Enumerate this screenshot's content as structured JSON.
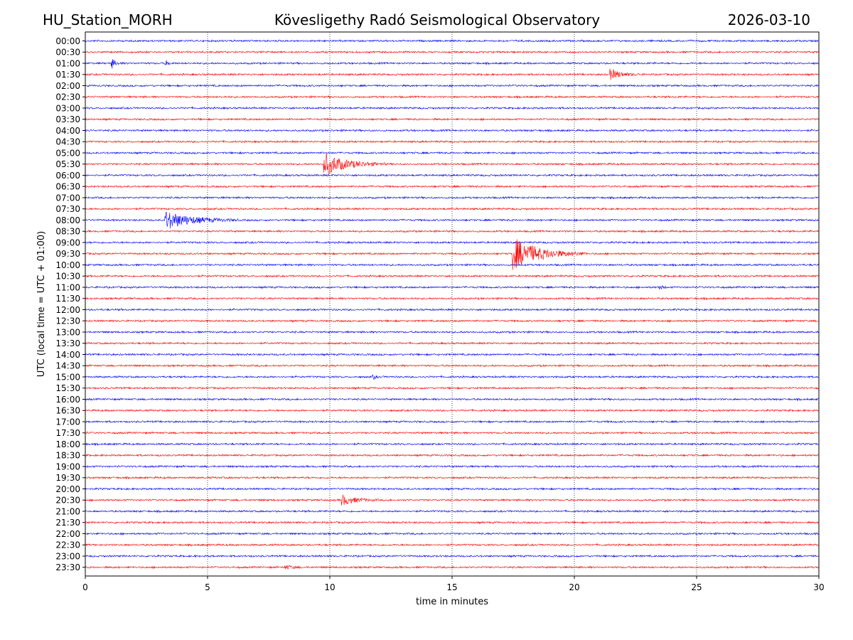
{
  "header": {
    "station": "HU_Station_MORH",
    "title": "Kövesligethy Radó Seismological Observatory",
    "date": "2026-03-10"
  },
  "chart_data": {
    "type": "line",
    "title": "Kövesligethy Radó Seismological Observatory",
    "xlabel": "time in minutes",
    "ylabel": "UTC (local time = UTC + 01:00)",
    "xlim": [
      0,
      30
    ],
    "x_ticks": [
      "0",
      "5",
      "10",
      "15",
      "20",
      "25",
      "30"
    ],
    "grid": "vertical dotted lines at 5-minute intervals",
    "rows": [
      "00:00",
      "00:30",
      "01:00",
      "01:30",
      "02:00",
      "02:30",
      "03:00",
      "03:30",
      "04:00",
      "04:30",
      "05:00",
      "05:30",
      "06:00",
      "06:30",
      "07:00",
      "07:30",
      "08:00",
      "08:30",
      "09:00",
      "09:30",
      "10:00",
      "10:30",
      "11:00",
      "11:30",
      "12:00",
      "12:30",
      "13:00",
      "13:30",
      "14:00",
      "14:30",
      "15:00",
      "15:30",
      "16:00",
      "16:30",
      "17:00",
      "17:30",
      "18:00",
      "18:30",
      "19:00",
      "19:30",
      "20:00",
      "20:30",
      "21:00",
      "21:30",
      "22:00",
      "22:30",
      "23:00",
      "23:30"
    ],
    "colors": {
      "even_rows": "#0000ff",
      "odd_rows": "#ff0000"
    },
    "events": [
      {
        "row": "01:00",
        "minute": 1.1,
        "amplitude": 0.45,
        "duration": 0.4
      },
      {
        "row": "01:00",
        "minute": 3.3,
        "amplitude": 0.25,
        "duration": 0.3
      },
      {
        "row": "01:30",
        "minute": 21.5,
        "amplitude": 0.5,
        "duration": 1.2
      },
      {
        "row": "05:30",
        "minute": 9.8,
        "amplitude": 1.1,
        "duration": 2.5
      },
      {
        "row": "08:00",
        "minute": 3.3,
        "amplitude": 0.9,
        "duration": 3.0
      },
      {
        "row": "09:30",
        "minute": 17.5,
        "amplitude": 1.6,
        "duration": 3.0
      },
      {
        "row": "11:00",
        "minute": 23.5,
        "amplitude": 0.2,
        "duration": 0.3
      },
      {
        "row": "15:00",
        "minute": 11.8,
        "amplitude": 0.2,
        "duration": 0.3
      },
      {
        "row": "20:30",
        "minute": 10.5,
        "amplitude": 0.5,
        "duration": 1.5
      },
      {
        "row": "23:30",
        "minute": 8.2,
        "amplitude": 0.2,
        "duration": 0.8
      }
    ]
  }
}
